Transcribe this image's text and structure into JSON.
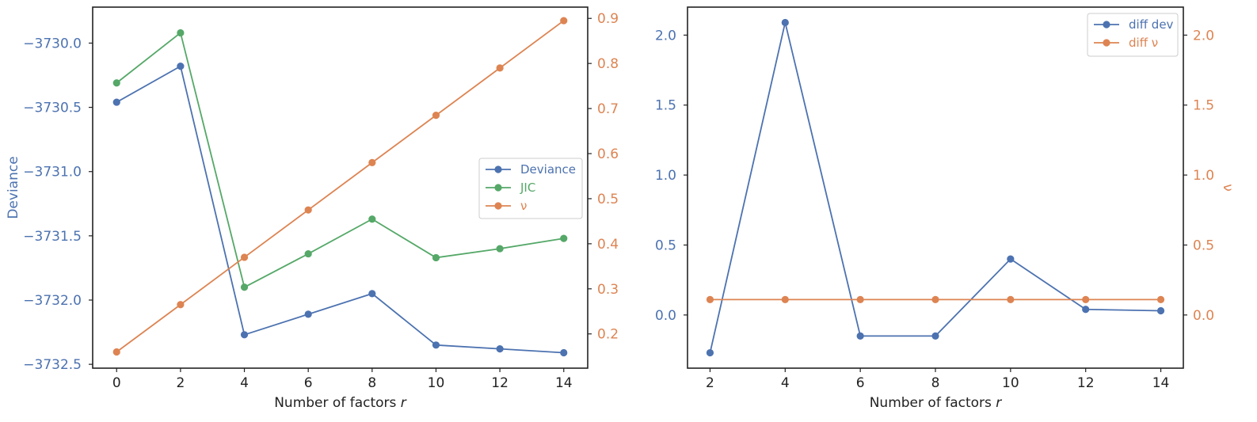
{
  "colors": {
    "blue": "#4c72b0",
    "green": "#55a868",
    "orange": "#dd8452",
    "dark": "#222222"
  },
  "chart_data": [
    {
      "type": "line",
      "x": [
        0,
        2,
        4,
        6,
        8,
        10,
        12,
        14
      ],
      "xlabel": "Number of factors r",
      "ylabel_left": "Deviance",
      "ylabel_right": "",
      "ylim_left": [
        -3732.53,
        -3729.72
      ],
      "ylim_right": [
        0.124,
        0.925
      ],
      "left_ticks": [
        -3730.0,
        -3730.5,
        -3731.0,
        -3731.5,
        -3732.0,
        -3732.5
      ],
      "left_tick_labels": [
        "−3730.0",
        "−3730.5",
        "−3731.0",
        "−3731.5",
        "−3732.0",
        "−3732.5"
      ],
      "right_ticks": [
        0.2,
        0.3,
        0.4,
        0.5,
        0.6,
        0.7,
        0.8,
        0.9
      ],
      "right_tick_labels": [
        "0.2",
        "0.3",
        "0.4",
        "0.5",
        "0.6",
        "0.7",
        "0.8",
        "0.9"
      ],
      "x_tick_labels": [
        "0",
        "2",
        "4",
        "6",
        "8",
        "10",
        "12",
        "14"
      ],
      "legend": "center-right",
      "grid": false,
      "series": [
        {
          "name": "Deviance",
          "axis": "left",
          "color": "#4c72b0",
          "values": [
            -3730.46,
            -3730.18,
            -3732.27,
            -3732.11,
            -3731.95,
            -3732.35,
            -3732.38,
            -3732.41
          ]
        },
        {
          "name": "JIC",
          "axis": "left",
          "color": "#55a868",
          "values": [
            -3730.31,
            -3729.92,
            -3731.9,
            -3731.64,
            -3731.37,
            -3731.67,
            -3731.6,
            -3731.52
          ]
        },
        {
          "name": "ν",
          "axis": "right",
          "color": "#dd8452",
          "values": [
            0.16,
            0.265,
            0.37,
            0.475,
            0.58,
            0.685,
            0.79,
            0.895
          ]
        }
      ]
    },
    {
      "type": "line",
      "x": [
        2,
        4,
        6,
        8,
        10,
        12,
        14
      ],
      "xlabel": "Number of factors r",
      "ylabel_left": "",
      "ylabel_right": "ν",
      "ylim_left": [
        -0.38,
        2.2
      ],
      "ylim_right": [
        -0.38,
        2.2
      ],
      "left_ticks": [
        0.0,
        0.5,
        1.0,
        1.5,
        2.0
      ],
      "left_tick_labels": [
        "0.0",
        "0.5",
        "1.0",
        "1.5",
        "2.0"
      ],
      "right_ticks": [
        0.0,
        0.5,
        1.0,
        1.5,
        2.0
      ],
      "right_tick_labels": [
        "0.0",
        "0.5",
        "1.0",
        "1.5",
        "2.0"
      ],
      "x_tick_labels": [
        "2",
        "4",
        "6",
        "8",
        "10",
        "12",
        "14"
      ],
      "legend": "upper-right",
      "grid": false,
      "series": [
        {
          "name": "diff dev",
          "axis": "left",
          "color": "#4c72b0",
          "values": [
            -0.27,
            2.09,
            -0.15,
            -0.15,
            0.4,
            0.04,
            0.03
          ]
        },
        {
          "name": "diff ν",
          "axis": "right",
          "color": "#dd8452",
          "values": [
            0.11,
            0.11,
            0.11,
            0.11,
            0.11,
            0.11,
            0.11
          ]
        }
      ]
    }
  ]
}
